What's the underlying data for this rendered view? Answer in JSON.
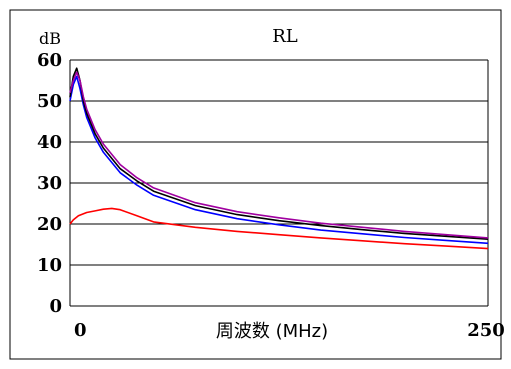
{
  "chart_data": {
    "type": "line",
    "title": "RL",
    "ylabel": "dB",
    "xlabel": "周波数 (MHz)",
    "xlim": [
      0,
      250
    ],
    "ylim": [
      0,
      60
    ],
    "x_ticks": [
      "0",
      "250"
    ],
    "y_ticks": [
      "0",
      "10",
      "20",
      "30",
      "40",
      "50",
      "60"
    ],
    "grid": "horizontal",
    "legend": "none",
    "series": [
      {
        "color": "#ff0000",
        "x": [
          0,
          2,
          5,
          10,
          15,
          20,
          25,
          30,
          40,
          50,
          75,
          100,
          125,
          150,
          175,
          200,
          225,
          250
        ],
        "y": [
          20,
          21.0,
          22.0,
          22.8,
          23.2,
          23.6,
          23.8,
          23.5,
          22.0,
          20.5,
          19.2,
          18.2,
          17.4,
          16.6,
          15.9,
          15.2,
          14.6,
          14.0
        ]
      },
      {
        "color": "#0000ff",
        "x": [
          0,
          2,
          4,
          6,
          8,
          10,
          15,
          20,
          30,
          40,
          50,
          75,
          100,
          125,
          150,
          175,
          200,
          225,
          250
        ],
        "y": [
          50,
          54,
          56,
          53,
          49,
          46,
          41,
          37.5,
          32.5,
          29.5,
          27,
          23.5,
          21.3,
          19.8,
          18.5,
          17.6,
          16.7,
          16.0,
          15.3
        ]
      },
      {
        "color": "#000000",
        "x": [
          0,
          2,
          4,
          6,
          8,
          10,
          15,
          20,
          30,
          40,
          50,
          75,
          100,
          125,
          150,
          175,
          200,
          225,
          250
        ],
        "y": [
          51,
          56,
          58,
          55,
          50,
          47,
          42,
          38.5,
          33.5,
          30.5,
          28,
          24.5,
          22.3,
          20.8,
          19.6,
          18.6,
          17.7,
          17.0,
          16.3
        ]
      },
      {
        "color": "#a000a0",
        "x": [
          0,
          2,
          4,
          6,
          8,
          10,
          15,
          20,
          30,
          40,
          50,
          75,
          100,
          125,
          150,
          175,
          200,
          225,
          250
        ],
        "y": [
          52,
          55,
          57,
          55,
          51,
          48,
          43,
          39.5,
          34.5,
          31.3,
          28.8,
          25.2,
          23.0,
          21.5,
          20.2,
          19.2,
          18.2,
          17.4,
          16.6
        ]
      }
    ]
  }
}
